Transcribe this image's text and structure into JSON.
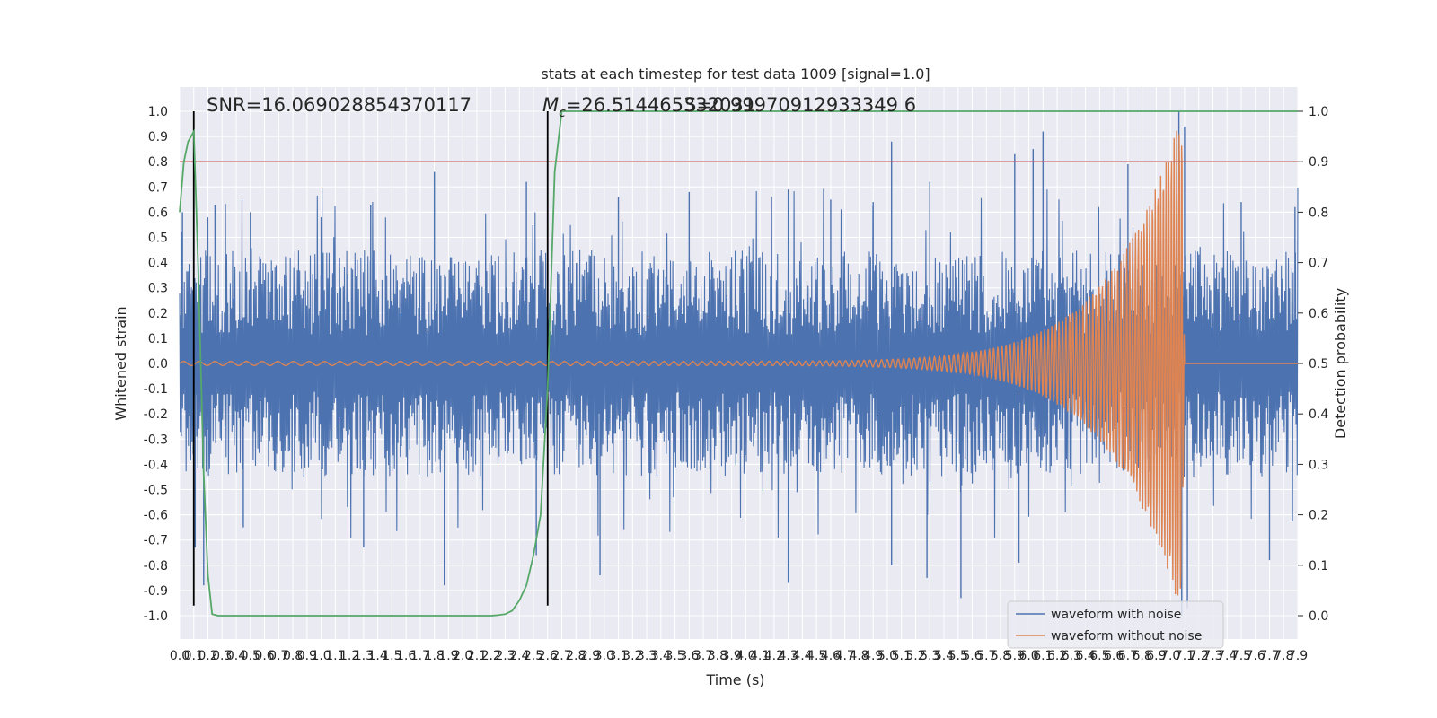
{
  "chart_data": {
    "type": "line",
    "title": "stats at each timestep for test data 1009 [signal=1.0]",
    "xlabel": "Time (s)",
    "ylabel": "Whitened strain",
    "ylabel_right": "Detection probability",
    "xlim": [
      0.0,
      7.9
    ],
    "ylim": [
      -1.0,
      1.0
    ],
    "ylim_right": [
      0.0,
      1.0
    ],
    "x_tick_labels": [
      "0.0",
      "0.1",
      "0.2",
      "0.3",
      "0.4",
      "0.5",
      "0.6",
      "0.7",
      "0.8",
      "0.9",
      "1.0",
      "1.1",
      "1.2",
      "1.3",
      "1.4",
      "1.5",
      "1.6",
      "1.7",
      "1.8",
      "1.9",
      "2.0",
      "2.1",
      "2.2",
      "2.3",
      "2.4",
      "2.5",
      "2.6",
      "2.7",
      "2.8",
      "2.9",
      "3.0",
      "3.1",
      "3.2",
      "3.3",
      "3.4",
      "3.5",
      "3.6",
      "3.7",
      "3.8",
      "3.9",
      "4.0",
      "4.1",
      "4.2",
      "4.3",
      "4.4",
      "4.5",
      "4.6",
      "4.7",
      "4.8",
      "4.9",
      "5.0",
      "5.1",
      "5.2",
      "5.3",
      "5.4",
      "5.5",
      "5.6",
      "5.7",
      "5.8",
      "5.9",
      "6.0",
      "6.1",
      "6.2",
      "6.3",
      "6.4",
      "6.5",
      "6.6",
      "6.7",
      "6.8",
      "6.9",
      "7.0",
      "7.1",
      "7.2",
      "7.3",
      "7.4",
      "7.5",
      "7.6",
      "7.7",
      "7.8",
      "7.9"
    ],
    "y_tick_labels": [
      "1.0",
      "0.9",
      "0.8",
      "0.7",
      "0.6",
      "0.5",
      "0.4",
      "0.3",
      "0.2",
      "0.1",
      "0.0",
      "-0.1",
      "-0.2",
      "-0.3",
      "-0.4",
      "-0.5",
      "-0.6",
      "-0.7",
      "-0.8",
      "-0.9",
      "-1.0"
    ],
    "y_right_tick_labels": [
      "1.0",
      "0.9",
      "0.8",
      "0.7",
      "0.6",
      "0.5",
      "0.4",
      "0.3",
      "0.2",
      "0.1",
      "0.0"
    ],
    "annotations": {
      "snr": "SNR=16.069028854370117",
      "mc_symbol": "M",
      "mc_subscript": "c",
      "mc_value": "=26.514465332031",
      "overlap_text": "S=0.99970912933349 6"
    },
    "grid": true,
    "legend": {
      "placement": "lower-right",
      "entries": [
        "waveform with noise",
        "waveform without noise"
      ]
    },
    "colors": {
      "noise": "#4c72b0",
      "signal": "#dd8452",
      "probability": "#55a868",
      "threshold": "#c44e52",
      "markers": "#000000",
      "background": "#eaeaf2"
    },
    "series": [
      {
        "name": "waveform with noise",
        "kind": "noise",
        "noise_band_amplitude": 0.45,
        "spike_peaks": [
          {
            "x": 0.02,
            "y": 0.6
          },
          {
            "x": 0.25,
            "y": 0.63
          },
          {
            "x": 0.5,
            "y": 0.6
          },
          {
            "x": 1.0,
            "y": 0.58
          },
          {
            "x": 1.35,
            "y": 0.63
          },
          {
            "x": 1.8,
            "y": 0.76
          },
          {
            "x": 2.45,
            "y": 0.72
          },
          {
            "x": 3.1,
            "y": 0.66
          },
          {
            "x": 3.6,
            "y": 0.68
          },
          {
            "x": 4.3,
            "y": 0.69
          },
          {
            "x": 4.6,
            "y": 0.65
          },
          {
            "x": 4.9,
            "y": 0.64
          },
          {
            "x": 5.03,
            "y": 0.88
          },
          {
            "x": 5.3,
            "y": 0.72
          },
          {
            "x": 5.9,
            "y": 0.83
          },
          {
            "x": 6.03,
            "y": 0.85
          },
          {
            "x": 6.1,
            "y": 0.92
          },
          {
            "x": 6.7,
            "y": 0.79
          },
          {
            "x": 7.06,
            "y": 1.0
          },
          {
            "x": 7.1,
            "y": 0.94
          },
          {
            "x": 7.5,
            "y": 0.64
          },
          {
            "x": 7.88,
            "y": 0.62
          }
        ],
        "spike_troughs": [
          {
            "x": 0.11,
            "y": -0.73
          },
          {
            "x": 0.17,
            "y": -0.88
          },
          {
            "x": 0.45,
            "y": -0.65
          },
          {
            "x": 1.3,
            "y": -0.73
          },
          {
            "x": 1.87,
            "y": -0.88
          },
          {
            "x": 2.52,
            "y": -0.76
          },
          {
            "x": 2.97,
            "y": -0.84
          },
          {
            "x": 4.3,
            "y": -0.87
          },
          {
            "x": 5.03,
            "y": -0.8
          },
          {
            "x": 5.28,
            "y": -0.85
          },
          {
            "x": 5.52,
            "y": -0.93
          },
          {
            "x": 5.93,
            "y": -0.79
          },
          {
            "x": 7.08,
            "y": -1.0
          },
          {
            "x": 7.12,
            "y": -0.97
          },
          {
            "x": 7.7,
            "y": -0.78
          }
        ]
      },
      {
        "name": "waveform without noise",
        "kind": "chirp",
        "start_frequency_hz": 9,
        "end_frequency_hz": 55,
        "initial_amplitude": 0.008,
        "peak_amplitude": 1.0,
        "merger_time": 7.08,
        "ringdown_end": 7.1
      },
      {
        "kind": "detection_probability",
        "axis": "right",
        "x": [
          0.0,
          0.03,
          0.06,
          0.1,
          0.13,
          0.17,
          0.2,
          0.23,
          0.27,
          0.3,
          0.4,
          0.6,
          1.0,
          1.5,
          2.0,
          2.2,
          2.25,
          2.3,
          2.35,
          2.4,
          2.45,
          2.5,
          2.55,
          2.6,
          2.65,
          2.7,
          3.0,
          4.0,
          5.0,
          6.0,
          7.0,
          7.9
        ],
        "y": [
          0.8,
          0.9,
          0.94,
          0.96,
          0.7,
          0.28,
          0.08,
          0.003,
          0.0,
          0.0,
          0.0,
          0.0,
          0.0,
          0.0,
          0.0,
          0.0,
          0.001,
          0.003,
          0.01,
          0.03,
          0.06,
          0.12,
          0.2,
          0.45,
          0.88,
          1.0,
          1.0,
          1.0,
          1.0,
          1.0,
          1.0,
          1.0
        ]
      }
    ],
    "threshold_right": 0.9,
    "vertical_markers_x": [
      0.1,
      2.6
    ],
    "vertical_markers_ylim": [
      -0.96,
      1.0
    ]
  }
}
